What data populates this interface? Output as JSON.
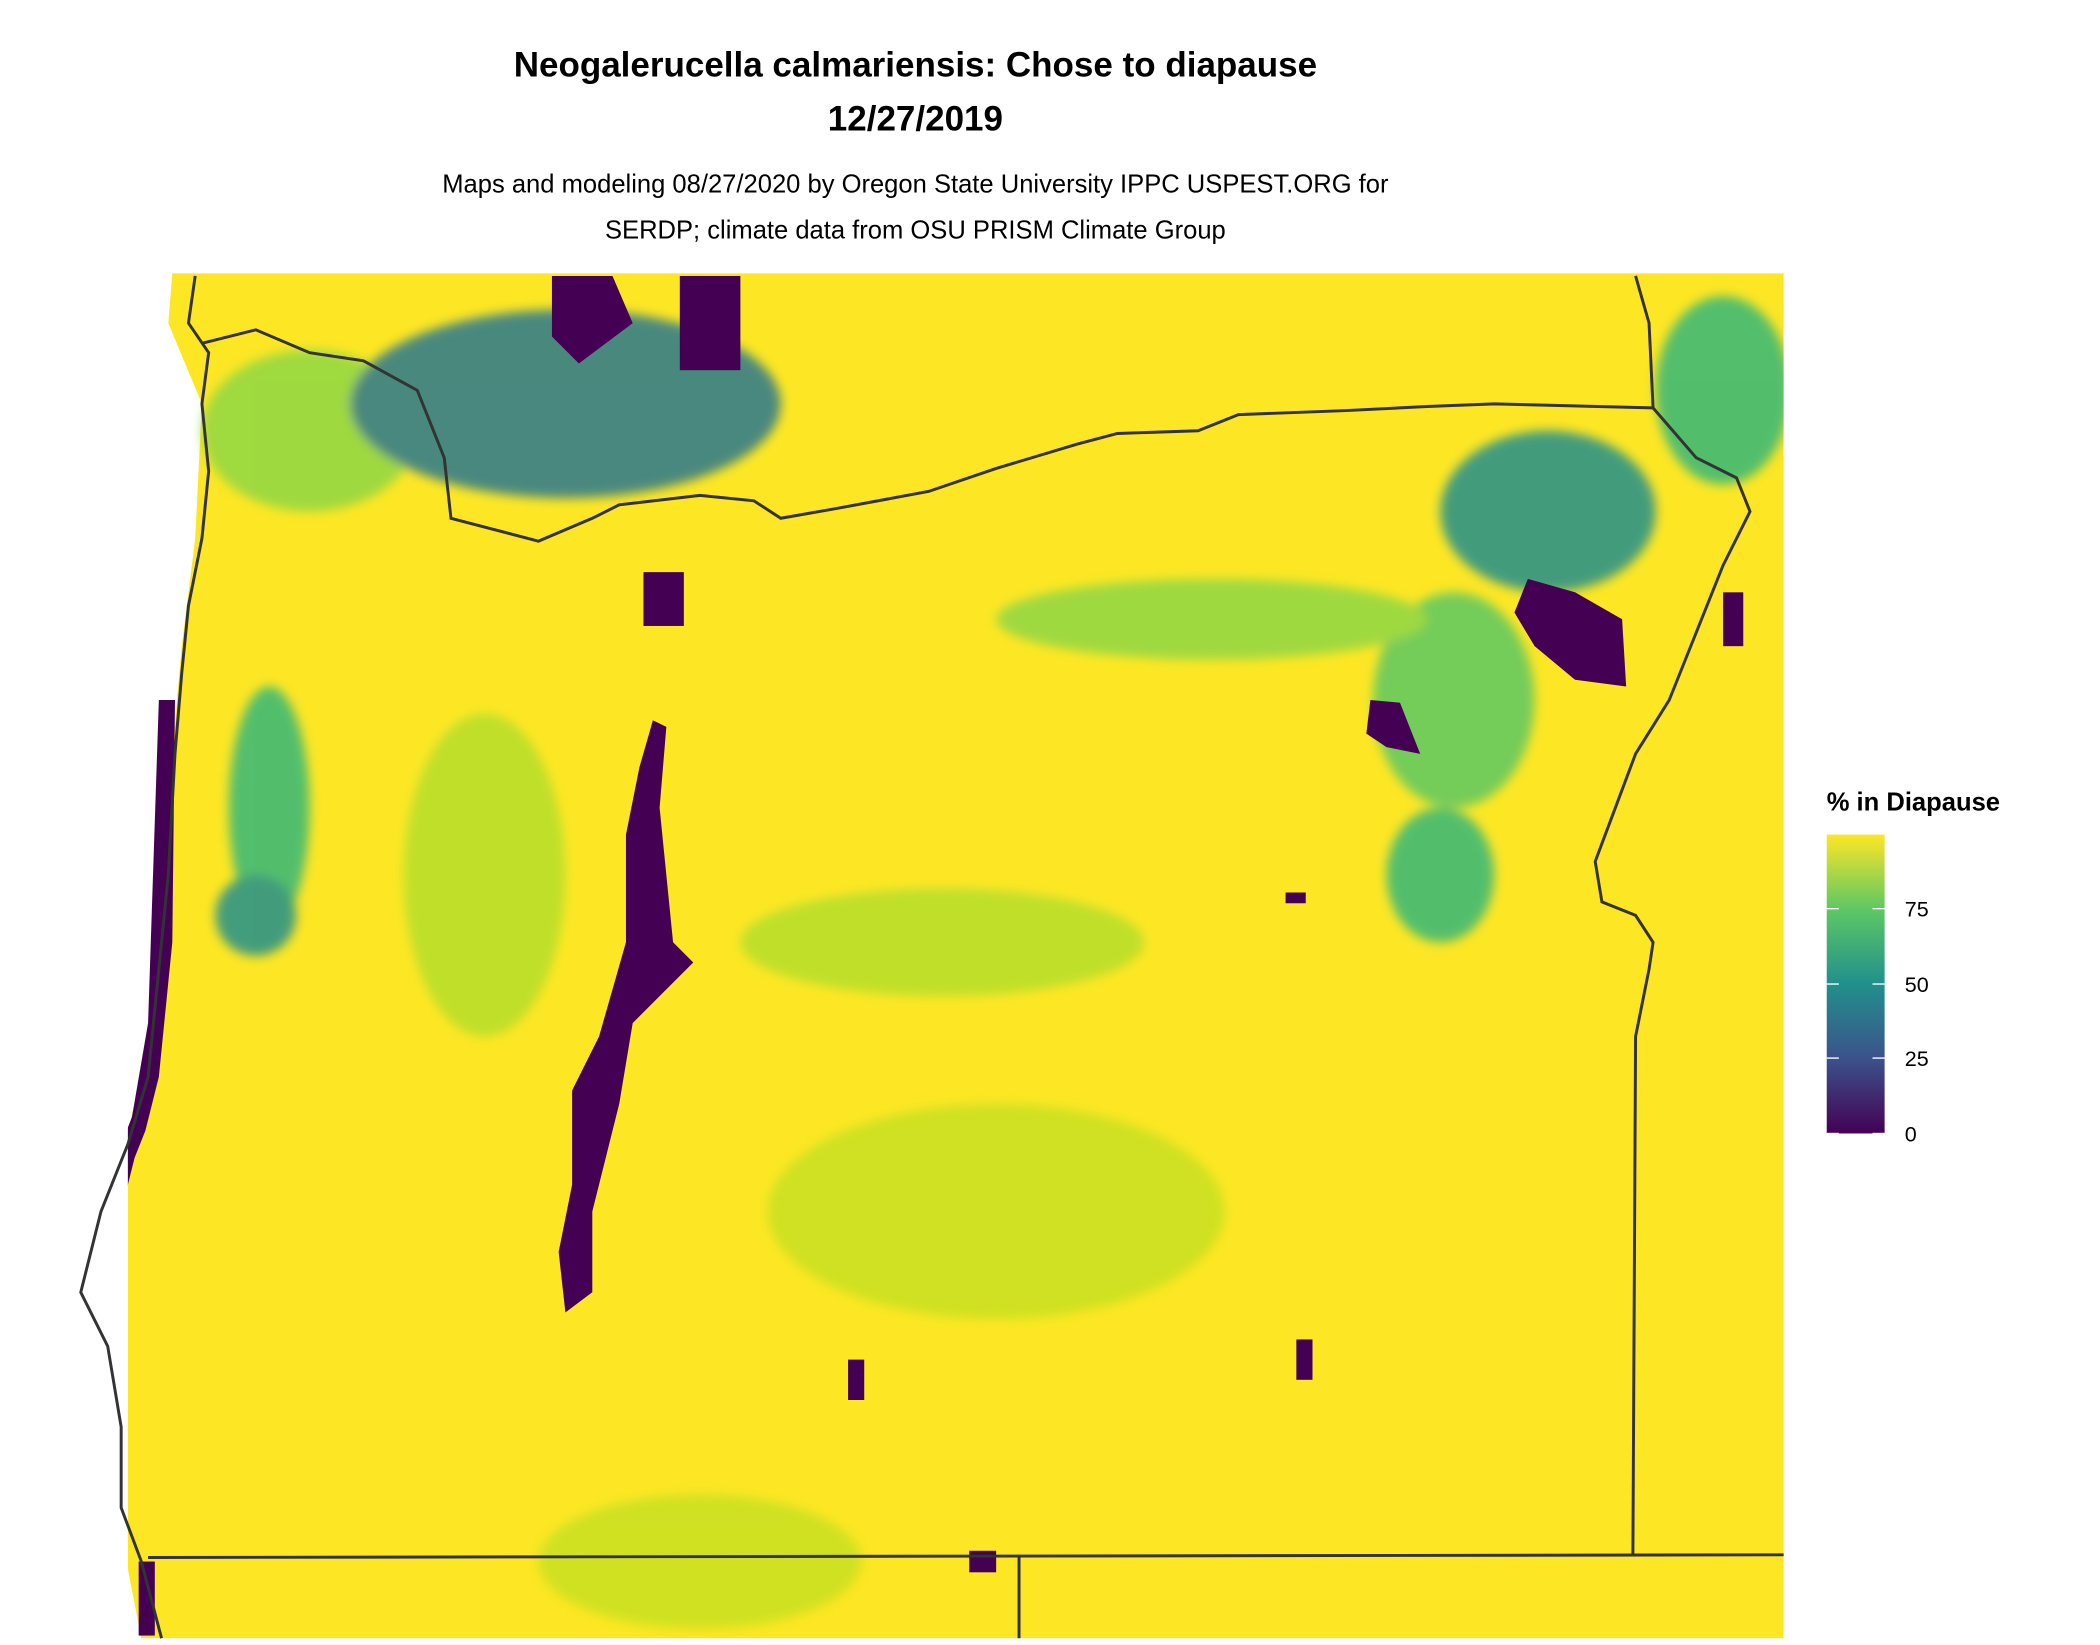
{
  "title": {
    "line1": "Neogalerucella calmariensis: Chose to diapause",
    "line2": "12/27/2019"
  },
  "subtitle": {
    "line1": "Maps and modeling 08/27/2020 by Oregon State University IPPC USPEST.ORG for",
    "line2": "SERDP; climate data from OSU PRISM Climate Group"
  },
  "legend": {
    "title": "% in Diapause",
    "ticks": [
      "0",
      "25",
      "50",
      "75"
    ],
    "range": [
      0,
      100
    ],
    "colormap": "viridis",
    "colors": [
      "#440154",
      "#3b528b",
      "#21908c",
      "#5dc863",
      "#fde725"
    ]
  },
  "map": {
    "region": "Oregon",
    "border_color": "#333333",
    "dominant_color": "#fde725"
  }
}
